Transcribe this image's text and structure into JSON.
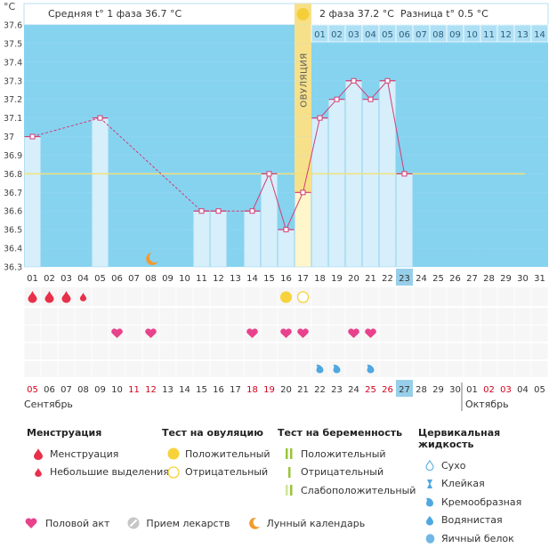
{
  "chart_data": {
    "type": "line",
    "unit_label": "°C",
    "title_left": "Средняя t° 1 фаза 36.7 °C",
    "title_right": "2 фаза 37.2 °C",
    "difference": "Разница t° 0.5 °C",
    "ovulation_label": "ОВУЛЯЦИЯ",
    "ylim": [
      36.3,
      37.6
    ],
    "y_ticks": [
      "36.3",
      "36.4",
      "36.5",
      "36.6",
      "36.7",
      "36.8",
      "36.9",
      "37",
      "37.1",
      "37.2",
      "37.3",
      "37.4",
      "37.5",
      "37.6"
    ],
    "coverline": 36.8,
    "ovulation_day": 17,
    "current_day": 23,
    "days": [
      "01",
      "02",
      "03",
      "04",
      "05",
      "06",
      "07",
      "08",
      "09",
      "10",
      "11",
      "12",
      "13",
      "14",
      "15",
      "16",
      "17",
      "18",
      "19",
      "20",
      "21",
      "22",
      "23",
      "24",
      "25",
      "26",
      "27",
      "28",
      "29",
      "30",
      "31"
    ],
    "phase2_days": [
      "01",
      "02",
      "03",
      "04",
      "05",
      "06",
      "07",
      "08",
      "09",
      "10",
      "11",
      "12",
      "13",
      "14"
    ],
    "temps": [
      37.0,
      null,
      null,
      null,
      37.1,
      null,
      null,
      null,
      null,
      null,
      36.6,
      36.6,
      null,
      36.6,
      36.8,
      36.5,
      36.7,
      37.1,
      37.2,
      37.3,
      37.2,
      37.3,
      36.8,
      null,
      null,
      null,
      null,
      null,
      null,
      null,
      null
    ],
    "interpolated_days": [
      1,
      5,
      11
    ],
    "bleeding": {
      "menstruation_days": [
        1,
        2,
        3
      ],
      "spotting_days": [
        4
      ]
    },
    "ovulation_tests": {
      "positive_days": [
        16
      ],
      "negative_days": [
        17
      ]
    },
    "intercourse_days": [
      6,
      8,
      14,
      16,
      17,
      20,
      21
    ],
    "cervical_days": [
      18,
      19,
      21
    ],
    "moon_days": [
      8
    ],
    "dates_row": [
      {
        "label": "05",
        "red": true
      },
      {
        "label": "06",
        "red": false
      },
      {
        "label": "07",
        "red": false
      },
      {
        "label": "08",
        "red": false
      },
      {
        "label": "09",
        "red": false
      },
      {
        "label": "10",
        "red": false
      },
      {
        "label": "11",
        "red": true
      },
      {
        "label": "12",
        "red": true
      },
      {
        "label": "13",
        "red": false
      },
      {
        "label": "14",
        "red": false
      },
      {
        "label": "15",
        "red": false
      },
      {
        "label": "16",
        "red": false
      },
      {
        "label": "17",
        "red": false
      },
      {
        "label": "18",
        "red": true
      },
      {
        "label": "19",
        "red": true
      },
      {
        "label": "20",
        "red": false
      },
      {
        "label": "21",
        "red": false
      },
      {
        "label": "22",
        "red": false
      },
      {
        "label": "23",
        "red": false
      },
      {
        "label": "24",
        "red": false
      },
      {
        "label": "25",
        "red": true
      },
      {
        "label": "26",
        "red": true
      },
      {
        "label": "27",
        "red": false
      },
      {
        "label": "28",
        "red": false
      },
      {
        "label": "29",
        "red": false
      },
      {
        "label": "30",
        "red": false
      },
      {
        "label": "01",
        "red": false
      },
      {
        "label": "02",
        "red": true
      },
      {
        "label": "03",
        "red": true
      },
      {
        "label": "04",
        "red": false
      },
      {
        "label": "05",
        "red": false
      }
    ],
    "month_labels": [
      "Сентябрь",
      "Октябрь"
    ]
  },
  "legend": {
    "menstruation": {
      "title": "Менструация",
      "items": [
        "Менструация",
        "Небольшие выделения"
      ]
    },
    "ovulation_test": {
      "title": "Тест на овуляцию",
      "items": [
        "Положительный",
        "Отрицательный"
      ]
    },
    "pregnancy_test": {
      "title": "Тест на беременность",
      "items": [
        "Положительный",
        "Отрицательный",
        "Слабоположительный"
      ]
    },
    "cervical": {
      "title": "Цервикальная жидкость",
      "items": [
        "Сухо",
        "Клейкая",
        "Кремообразная",
        "Водянистая",
        "Яичный белок"
      ]
    },
    "bottom": [
      "Половой акт",
      "Прием лекарств",
      "Лунный календарь"
    ]
  },
  "colors": {
    "sky": "#86d3f0",
    "bar": "#d6effb",
    "bar_stroke": "#a5d9f2",
    "line": "#d23d74",
    "ovulation": "#f7e08a",
    "drop": "#e8304a",
    "heart": "#e8428c",
    "cervical": "#4fa8e0",
    "egg": "#f7d23b",
    "current": "#97cfea",
    "red_text": "#d0021b"
  }
}
